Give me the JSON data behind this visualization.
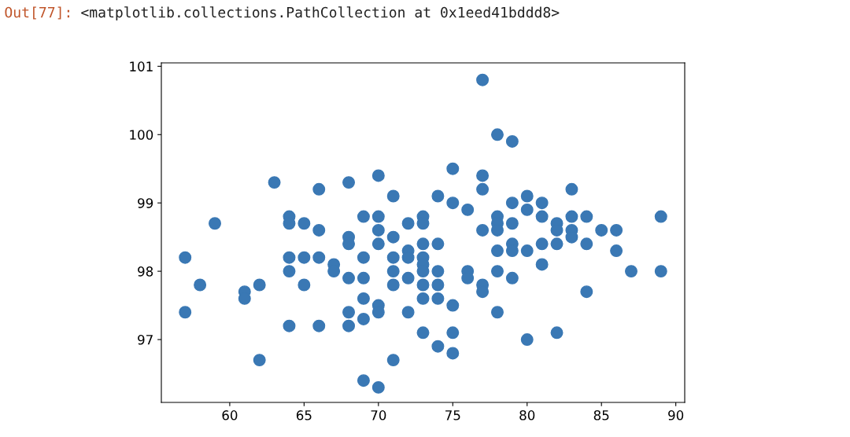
{
  "chart_data": {
    "type": "scatter",
    "annotations": [
      "Out[77]:",
      "<matplotlib.collections.PathCollection at 0x1eed41bddd8>"
    ],
    "x": [
      57,
      57,
      58,
      59,
      61,
      61,
      62,
      62,
      63,
      64,
      64,
      64,
      64,
      64,
      65,
      65,
      65,
      66,
      66,
      66,
      66,
      67,
      67,
      68,
      68,
      68,
      68,
      68,
      68,
      69,
      69,
      69,
      69,
      69,
      69,
      70,
      70,
      70,
      70,
      70,
      70,
      70,
      71,
      71,
      71,
      71,
      71,
      71,
      72,
      72,
      72,
      72,
      72,
      73,
      73,
      73,
      73,
      73,
      73,
      73,
      73,
      73,
      74,
      74,
      74,
      74,
      74,
      74,
      75,
      75,
      75,
      75,
      75,
      76,
      76,
      76,
      77,
      77,
      77,
      77,
      77,
      77,
      78,
      78,
      78,
      78,
      78,
      78,
      78,
      79,
      79,
      79,
      79,
      79,
      79,
      80,
      80,
      80,
      80,
      81,
      81,
      81,
      81,
      82,
      82,
      82,
      82,
      83,
      83,
      83,
      83,
      84,
      84,
      84,
      85,
      86,
      86,
      87,
      89,
      89
    ],
    "series": [
      {
        "color": "#3a78b4",
        "values": [
          98.2,
          97.4,
          97.8,
          98.7,
          97.7,
          97.6,
          97.8,
          96.7,
          99.3,
          98.8,
          98.7,
          98.2,
          98.0,
          97.2,
          98.7,
          98.2,
          97.8,
          99.2,
          98.6,
          98.2,
          97.2,
          98.1,
          98.0,
          99.3,
          98.5,
          98.4,
          97.9,
          97.4,
          97.2,
          98.8,
          98.2,
          97.9,
          97.6,
          97.3,
          96.4,
          99.4,
          98.8,
          98.6,
          98.4,
          97.5,
          97.4,
          96.3,
          99.1,
          98.5,
          98.2,
          98.0,
          97.8,
          96.7,
          98.7,
          98.3,
          98.2,
          97.9,
          97.4,
          98.8,
          98.7,
          98.4,
          98.2,
          98.1,
          98.0,
          97.8,
          97.6,
          97.1,
          99.1,
          98.4,
          98.0,
          97.8,
          97.6,
          96.9,
          99.5,
          99.0,
          97.5,
          97.1,
          96.8,
          98.9,
          98.0,
          97.9,
          100.8,
          99.4,
          99.2,
          98.6,
          97.8,
          97.7,
          100.0,
          98.8,
          98.7,
          98.6,
          98.3,
          98.0,
          97.4,
          99.9,
          99.0,
          98.7,
          98.4,
          98.3,
          97.9,
          99.1,
          98.9,
          98.3,
          97.0,
          99.0,
          98.8,
          98.4,
          98.1,
          98.7,
          98.6,
          98.4,
          97.1,
          99.2,
          98.8,
          98.6,
          98.5,
          98.8,
          98.4,
          97.7,
          98.6,
          98.6,
          98.3,
          98.0,
          98.8,
          98.0
        ]
      }
    ],
    "xlim": [
      55.4,
      90.6
    ],
    "ylim": [
      96.08,
      101.05
    ],
    "xticks": [
      60,
      65,
      70,
      75,
      80,
      85,
      90
    ],
    "yticks": [
      97,
      98,
      99,
      100,
      101
    ],
    "marker": "circle",
    "grid": false
  }
}
